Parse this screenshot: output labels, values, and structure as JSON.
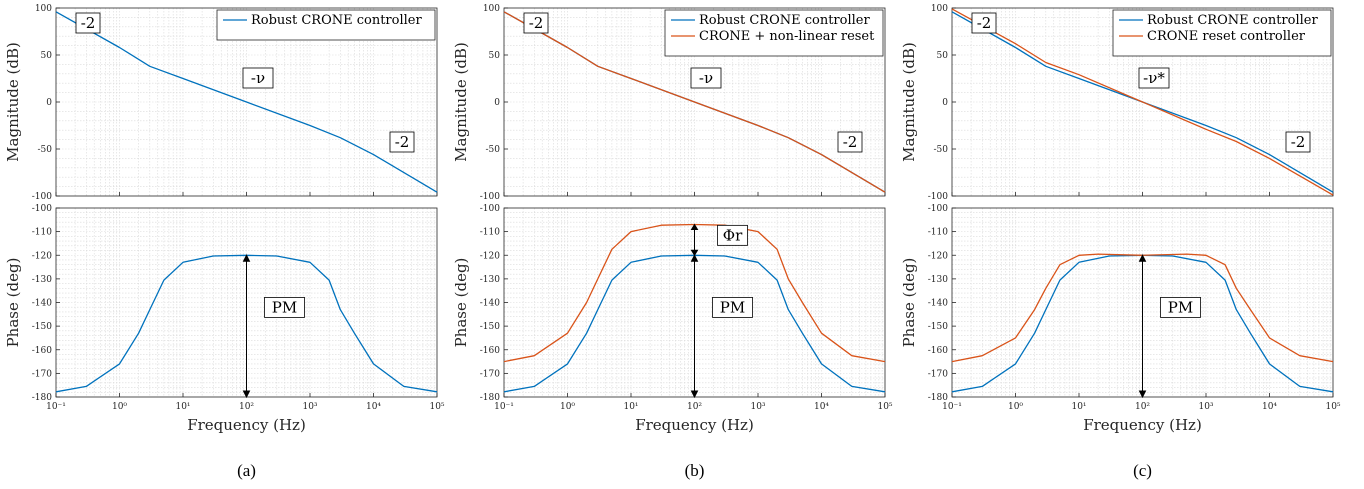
{
  "colors": {
    "blue": "#0072BD",
    "orange": "#D95319",
    "grid": "#DADADA",
    "axis": "#262626"
  },
  "chart_data": [
    {
      "type": "line",
      "caption": "(a)",
      "xlabel": "Frequency (Hz)",
      "xscale": "log",
      "xlim": [
        0.1,
        100000
      ],
      "x_ticks": [
        "10⁻¹",
        "10⁰",
        "10¹",
        "10²",
        "10³",
        "10⁴",
        "10⁵"
      ],
      "grid": "on (major and minor)",
      "magnitude": {
        "ylabel": "Magnitude (dB)",
        "ylim": [
          -100,
          100
        ],
        "y_ticks": [
          100,
          50,
          0,
          -50,
          -100
        ],
        "legend": {
          "position": "top-right",
          "entries": [
            "Robust CRONE controller"
          ]
        },
        "annotations": [
          "-2",
          "-ν",
          "-2"
        ],
        "series": [
          {
            "name": "Robust CRONE controller",
            "color": "blue",
            "x": [
              0.1,
              1,
              3,
              10,
              100,
              1000,
              3000,
              10000,
              100000
            ],
            "y": [
              96,
              58,
              38,
              25,
              0,
              -25,
              -38,
              -56,
              -96
            ]
          }
        ]
      },
      "phase": {
        "ylabel": "Phase (deg)",
        "ylim": [
          -180,
          -100
        ],
        "y_ticks": [
          -100,
          -110,
          -120,
          -130,
          -140,
          -150,
          -160,
          -170,
          -180
        ],
        "annotations": [
          "PM"
        ],
        "series": [
          {
            "name": "Robust CRONE controller",
            "color": "blue",
            "x": [
              0.1,
              0.3,
              1,
              2,
              3,
              5,
              10,
              30,
              100,
              300,
              1000,
              2000,
              3000,
              5000,
              10000,
              30000,
              100000
            ],
            "y": [
              -177.8,
              -175.5,
              -166,
              -153,
              -143,
              -130.5,
              -123,
              -120.3,
              -120,
              -120.3,
              -123,
              -130.5,
              -143,
              -153,
              -166,
              -175.5,
              -177.8
            ]
          }
        ]
      }
    },
    {
      "type": "line",
      "caption": "(b)",
      "xlabel": "Frequency (Hz)",
      "xscale": "log",
      "xlim": [
        0.1,
        100000
      ],
      "x_ticks": [
        "10⁻¹",
        "10⁰",
        "10¹",
        "10²",
        "10³",
        "10⁴",
        "10⁵"
      ],
      "grid": "on (major and minor)",
      "magnitude": {
        "ylabel": "Magnitude (dB)",
        "ylim": [
          -100,
          100
        ],
        "y_ticks": [
          100,
          50,
          0,
          -50,
          -100
        ],
        "legend": {
          "position": "top-right",
          "entries": [
            "Robust CRONE controller",
            "CRONE + non-linear reset"
          ]
        },
        "annotations": [
          "-2",
          "-ν",
          "-2"
        ],
        "series": [
          {
            "name": "Robust CRONE controller",
            "color": "blue",
            "x": [
              0.1,
              1,
              3,
              10,
              100,
              1000,
              3000,
              10000,
              100000
            ],
            "y": [
              96,
              58,
              38,
              25,
              0,
              -25,
              -38,
              -56,
              -96
            ]
          },
          {
            "name": "CRONE + non-linear reset",
            "color": "orange",
            "x": [
              0.1,
              1,
              3,
              10,
              100,
              1000,
              3000,
              10000,
              100000
            ],
            "y": [
              96,
              58,
              38,
              25,
              0,
              -25,
              -38,
              -56,
              -96
            ]
          }
        ]
      },
      "phase": {
        "ylabel": "Phase (deg)",
        "ylim": [
          -180,
          -100
        ],
        "y_ticks": [
          -100,
          -110,
          -120,
          -130,
          -140,
          -150,
          -160,
          -170,
          -180
        ],
        "annotations": [
          "PM",
          "Φr"
        ],
        "series": [
          {
            "name": "Robust CRONE controller",
            "color": "blue",
            "x": [
              0.1,
              0.3,
              1,
              2,
              3,
              5,
              10,
              30,
              100,
              300,
              1000,
              2000,
              3000,
              5000,
              10000,
              30000,
              100000
            ],
            "y": [
              -177.8,
              -175.5,
              -166,
              -153,
              -143,
              -130.5,
              -123,
              -120.3,
              -120,
              -120.3,
              -123,
              -130.5,
              -143,
              -153,
              -166,
              -175.5,
              -177.8
            ]
          },
          {
            "name": "CRONE + non-linear reset",
            "color": "orange",
            "x": [
              0.1,
              0.3,
              1,
              2,
              3,
              5,
              10,
              30,
              100,
              300,
              1000,
              2000,
              3000,
              5000,
              10000,
              30000,
              100000
            ],
            "y": [
              -165,
              -162.5,
              -153,
              -140,
              -130,
              -117.5,
              -110,
              -107.3,
              -107,
              -107.3,
              -110,
              -117.5,
              -130,
              -140,
              -153,
              -162.5,
              -165
            ]
          }
        ]
      }
    },
    {
      "type": "line",
      "caption": "(c)",
      "xlabel": "Frequency (Hz)",
      "xscale": "log",
      "xlim": [
        0.1,
        100000
      ],
      "x_ticks": [
        "10⁻¹",
        "10⁰",
        "10¹",
        "10²",
        "10³",
        "10⁴",
        "10⁵"
      ],
      "grid": "on (major and minor)",
      "magnitude": {
        "ylabel": "Magnitude (dB)",
        "ylim": [
          -100,
          100
        ],
        "y_ticks": [
          100,
          50,
          0,
          -50,
          -100
        ],
        "legend": {
          "position": "top-right",
          "entries": [
            "Robust CRONE controller",
            "CRONE reset controller"
          ]
        },
        "annotations": [
          "-2",
          "-ν*",
          "-2"
        ],
        "series": [
          {
            "name": "Robust CRONE controller",
            "color": "blue",
            "x": [
              0.1,
              1,
              3,
              10,
              100,
              1000,
              3000,
              10000,
              100000
            ],
            "y": [
              96,
              58,
              38,
              25,
              0,
              -25,
              -38,
              -56,
              -96
            ]
          },
          {
            "name": "CRONE reset controller",
            "color": "orange",
            "x": [
              0.1,
              1,
              3,
              10,
              100,
              1000,
              3000,
              10000,
              100000
            ],
            "y": [
              99,
              62,
              42,
              29,
              0,
              -29,
              -42,
              -60,
              -99
            ]
          }
        ]
      },
      "phase": {
        "ylabel": "Phase (deg)",
        "ylim": [
          -180,
          -100
        ],
        "y_ticks": [
          -100,
          -110,
          -120,
          -130,
          -140,
          -150,
          -160,
          -170,
          -180
        ],
        "annotations": [
          "PM"
        ],
        "series": [
          {
            "name": "Robust CRONE controller",
            "color": "blue",
            "x": [
              0.1,
              0.3,
              1,
              2,
              3,
              5,
              10,
              30,
              100,
              300,
              1000,
              2000,
              3000,
              5000,
              10000,
              30000,
              100000
            ],
            "y": [
              -177.8,
              -175.5,
              -166,
              -153,
              -143,
              -130.5,
              -123,
              -120.3,
              -120,
              -120.3,
              -123,
              -130.5,
              -143,
              -153,
              -166,
              -175.5,
              -177.8
            ]
          },
          {
            "name": "CRONE reset controller",
            "color": "orange",
            "x": [
              0.1,
              0.3,
              1,
              2,
              3,
              5,
              10,
              20,
              100,
              500,
              1000,
              2000,
              3000,
              5000,
              10000,
              30000,
              100000
            ],
            "y": [
              -165,
              -162.5,
              -155,
              -143,
              -134,
              -124,
              -120,
              -119.5,
              -120,
              -119.5,
              -120,
              -124,
              -134,
              -143,
              -155,
              -162.5,
              -165
            ]
          }
        ]
      }
    }
  ]
}
